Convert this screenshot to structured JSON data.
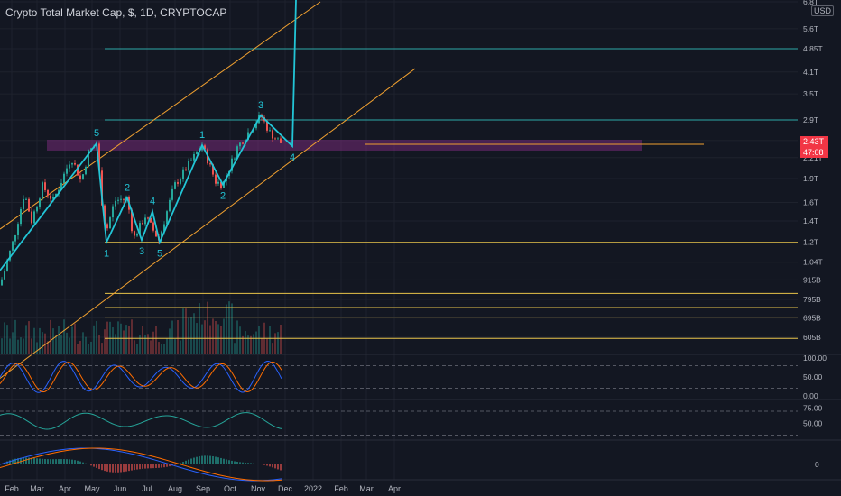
{
  "header": {
    "title": "Crypto Total Market Cap, $, 1D, CRYPTOCAP",
    "currency": "USD"
  },
  "price_badge": {
    "price": "2.43T",
    "countdown": "47:08"
  },
  "colors": {
    "background": "#131722",
    "cyan": "#22c5d6",
    "orange": "#f0a030",
    "yellow": "#e8c44a",
    "teal_line": "#2ea8a8",
    "up": "#26a69a",
    "down": "#ef5350",
    "zone": "#8a2f8a",
    "stoch_k": "#2962ff",
    "stoch_d": "#ff6d00",
    "rsi": "#26a69a"
  },
  "chart_data": {
    "type": "line",
    "title": "Crypto Total Market Cap, $, 1D, CRYPTOCAP",
    "x_ticks": [
      "Feb",
      "Mar",
      "Apr",
      "May",
      "Jun",
      "Jul",
      "Aug",
      "Sep",
      "Oct",
      "Nov",
      "Dec",
      "2022",
      "Feb",
      "Mar",
      "Apr"
    ],
    "price_axis_ticks": [
      "6.8T",
      "5.6T",
      "4.85T",
      "4.1T",
      "3.5T",
      "2.9T",
      "2.5T",
      "2.21T",
      "1.9T",
      "1.6T",
      "1.4T",
      "1.2T",
      "1.04T",
      "915B",
      "795B",
      "695B",
      "605B"
    ],
    "price_axis_scale": "log",
    "price_series": [
      {
        "x": "2021-01-25",
        "y": 0.88
      },
      {
        "x": "2021-02-10",
        "y": 1.25
      },
      {
        "x": "2021-02-21",
        "y": 1.72
      },
      {
        "x": "2021-03-01",
        "y": 1.4
      },
      {
        "x": "2021-03-13",
        "y": 1.8
      },
      {
        "x": "2021-03-25",
        "y": 1.62
      },
      {
        "x": "2021-04-14",
        "y": 2.22
      },
      {
        "x": "2021-04-25",
        "y": 1.86
      },
      {
        "x": "2021-05-03",
        "y": 2.3
      },
      {
        "x": "2021-05-12",
        "y": 2.45
      },
      {
        "x": "2021-05-19",
        "y": 1.5
      },
      {
        "x": "2021-05-23",
        "y": 1.3
      },
      {
        "x": "2021-06-01",
        "y": 1.62
      },
      {
        "x": "2021-06-15",
        "y": 1.65
      },
      {
        "x": "2021-06-22",
        "y": 1.23
      },
      {
        "x": "2021-07-05",
        "y": 1.45
      },
      {
        "x": "2021-07-20",
        "y": 1.22
      },
      {
        "x": "2021-08-06",
        "y": 1.8
      },
      {
        "x": "2021-08-22",
        "y": 2.1
      },
      {
        "x": "2021-09-06",
        "y": 2.42
      },
      {
        "x": "2021-09-21",
        "y": 1.86
      },
      {
        "x": "2021-09-29",
        "y": 1.82
      },
      {
        "x": "2021-10-15",
        "y": 2.38
      },
      {
        "x": "2021-10-29",
        "y": 2.7
      },
      {
        "x": "2021-11-10",
        "y": 3.0
      },
      {
        "x": "2021-11-20",
        "y": 2.65
      },
      {
        "x": "2021-11-26",
        "y": 2.55
      },
      {
        "x": "2021-12-04",
        "y": 2.43
      }
    ],
    "wave_labels": [
      {
        "label": "5",
        "x": "2021-05-12",
        "y": 2.45
      },
      {
        "label": "1",
        "x": "2021-05-23",
        "y": 1.2
      },
      {
        "label": "2",
        "x": "2021-06-15",
        "y": 1.65
      },
      {
        "label": "3",
        "x": "2021-07-01",
        "y": 1.22
      },
      {
        "label": "4",
        "x": "2021-07-13",
        "y": 1.5
      },
      {
        "label": "5",
        "x": "2021-07-21",
        "y": 1.2
      },
      {
        "label": "1",
        "x": "2021-09-06",
        "y": 2.42
      },
      {
        "label": "2",
        "x": "2021-09-29",
        "y": 1.82
      },
      {
        "label": "3",
        "x": "2021-11-10",
        "y": 3.0
      },
      {
        "label": "4",
        "x": "2021-12-15",
        "y": 2.4
      }
    ],
    "projection_path": [
      {
        "x": "2021-01-25",
        "y": 0.98
      },
      {
        "x": "2021-05-12",
        "y": 2.45
      },
      {
        "x": "2021-05-23",
        "y": 1.2
      },
      {
        "x": "2021-06-15",
        "y": 1.65
      },
      {
        "x": "2021-07-01",
        "y": 1.22
      },
      {
        "x": "2021-07-13",
        "y": 1.5
      },
      {
        "x": "2021-07-21",
        "y": 1.2
      },
      {
        "x": "2021-09-06",
        "y": 2.42
      },
      {
        "x": "2021-09-29",
        "y": 1.82
      },
      {
        "x": "2021-11-10",
        "y": 3.0
      },
      {
        "x": "2021-12-15",
        "y": 2.4
      },
      {
        "x": "2021-12-15",
        "y": 2.4
      },
      {
        "x": "2021-12-19",
        "y": 6.9
      }
    ],
    "horizontal_levels": [
      {
        "y": 4.85,
        "color": "cyan"
      },
      {
        "y": 2.9,
        "color": "cyan"
      },
      {
        "y": 1.2,
        "color": "yellow"
      },
      {
        "y": 0.83,
        "color": "yellow"
      },
      {
        "y": 0.75,
        "color": "yellow"
      },
      {
        "y": 0.7,
        "color": "yellow"
      },
      {
        "y": 0.6,
        "color": "yellow"
      }
    ],
    "trendlines": [
      {
        "color": "orange",
        "from": {
          "x": "2021-01-25",
          "y": 1.32
        },
        "to": {
          "x": "2022-01-15",
          "y": 6.8
        }
      },
      {
        "color": "orange",
        "from": {
          "x": "2021-01-25",
          "y": 0.45
        },
        "to": {
          "x": "2022-04-30",
          "y": 4.2
        }
      }
    ],
    "stoch_rsi": {
      "ylim": [
        0,
        100
      ],
      "ticks": [
        "100.00",
        "50.00",
        "0.00"
      ],
      "levels": [
        80,
        20
      ]
    },
    "rsi": {
      "ylim": [
        25,
        85
      ],
      "ticks": [
        "75.00",
        "50.00"
      ],
      "levels": [
        70,
        30
      ]
    },
    "macd": {
      "ticks": [
        "0"
      ]
    }
  }
}
